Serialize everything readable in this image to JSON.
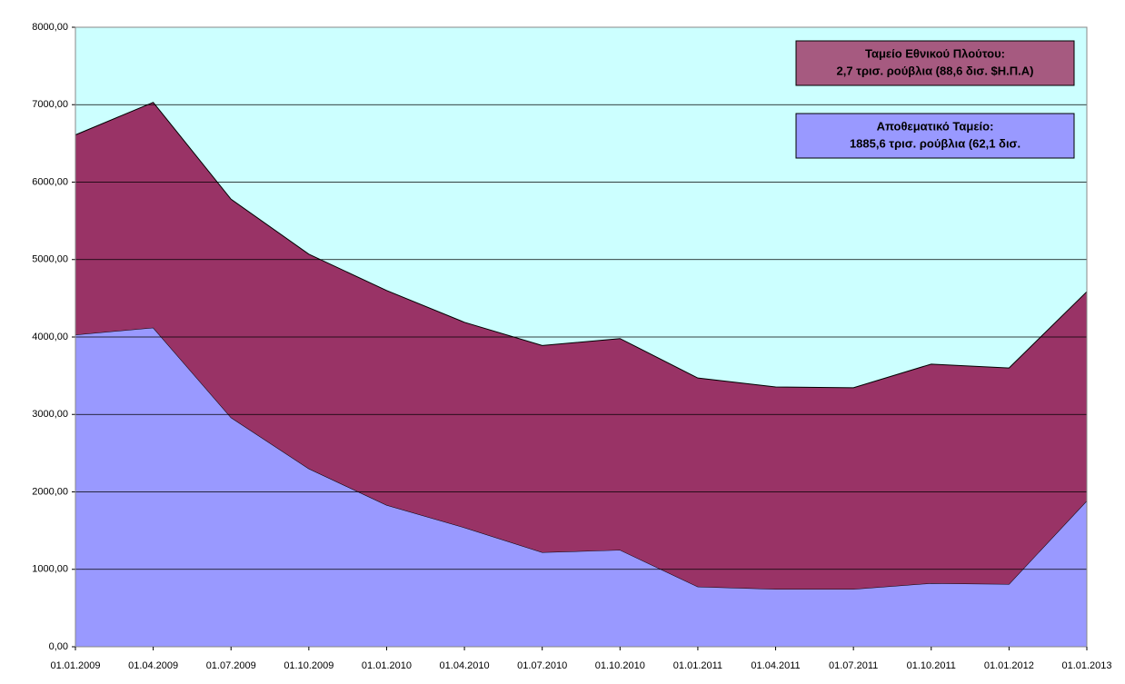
{
  "chart_data": {
    "type": "stacked_area",
    "categories": [
      "01.01.2009",
      "01.04.2009",
      "01.07.2009",
      "01.10.2009",
      "01.01.2010",
      "01.04.2010",
      "01.07.2010",
      "01.10.2010",
      "01.01.2011",
      "01.04.2011",
      "01.07.2011",
      "01.10.2011",
      "01.01.2012",
      "01.01.2013"
    ],
    "series": [
      {
        "name": "Αποθεματικό Ταμείο:",
        "note": "1885,6 τρισ. ρούβλια (62,1 δισ.",
        "color": "#9999ff",
        "values": [
          4030,
          4120,
          2960,
          2300,
          1830,
          1540,
          1220,
          1250,
          775,
          745,
          745,
          820,
          810,
          1885.6
        ]
      },
      {
        "name": "Ταμείο Εθνικού Πλούτου:",
        "note": "2,7 τρισ. ρούβλια  (88,6 δισ. $Η.Π.Α)",
        "color": "#993366",
        "legend_color": "#a65a80",
        "values": [
          2580,
          2910,
          2820,
          2770,
          2770,
          2650,
          2670,
          2730,
          2695,
          2610,
          2600,
          2830,
          2790,
          2700
        ]
      }
    ],
    "ylim": [
      0,
      8000
    ],
    "yticks": [
      {
        "value": 0,
        "label": "0,00"
      },
      {
        "value": 1000,
        "label": "1000,00"
      },
      {
        "value": 2000,
        "label": "2000,00"
      },
      {
        "value": 3000,
        "label": "3000,00"
      },
      {
        "value": 4000,
        "label": "4000,00"
      },
      {
        "value": 5000,
        "label": "5000,00"
      },
      {
        "value": 6000,
        "label": "6000,00"
      },
      {
        "value": 7000,
        "label": "7000,00"
      },
      {
        "value": 8000,
        "label": "8000,00"
      }
    ],
    "grid": true,
    "background": "#ccffff"
  }
}
